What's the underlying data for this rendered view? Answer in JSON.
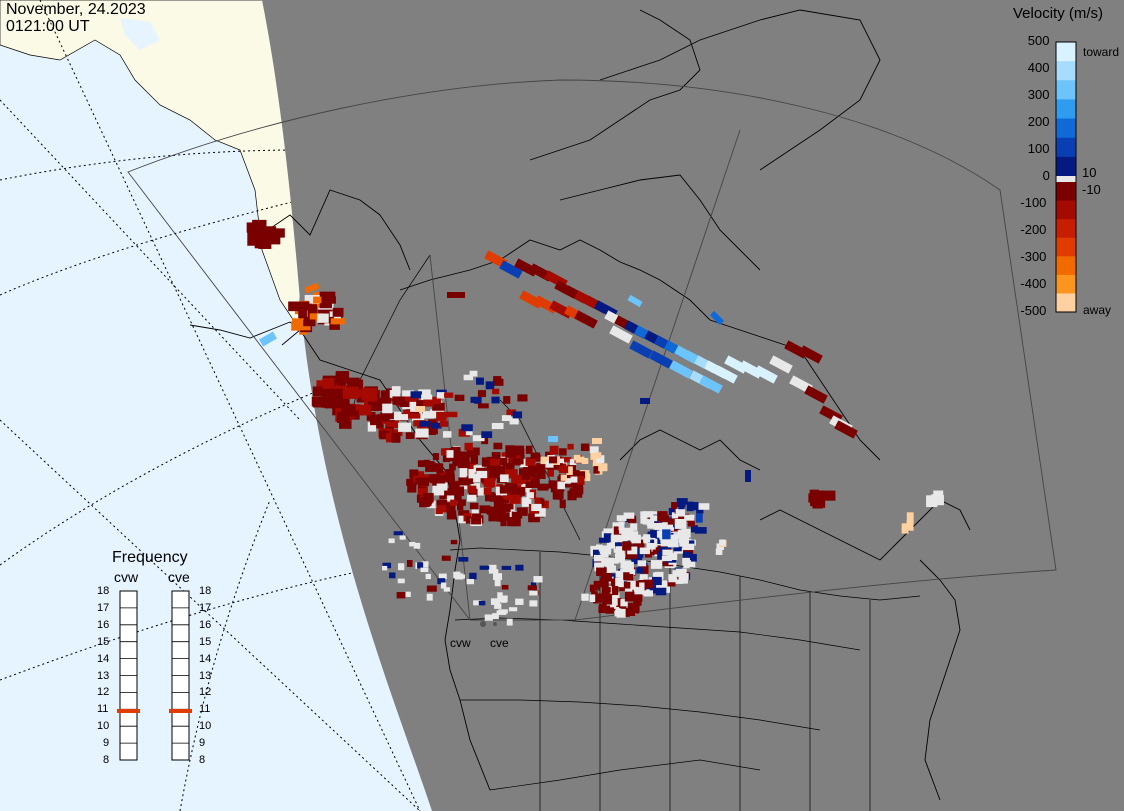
{
  "header": {
    "date": "November, 24.2023",
    "time": "0121:00 UT"
  },
  "velocity_legend": {
    "title": "Velocity (m/s)",
    "ticks": [
      "500",
      "400",
      "300",
      "200",
      "100",
      "10",
      "0",
      "-10",
      "-100",
      "-200",
      "-300",
      "-400",
      "-500"
    ],
    "toward_label": "toward",
    "away_label": "away",
    "colors": {
      "toward": [
        "#d8f2ff",
        "#a8dcfc",
        "#6cc4fa",
        "#2f9cf0",
        "#0f6ad8",
        "#0a3fb4",
        "#041a80"
      ],
      "ground": "#e8e8e8",
      "away": [
        "#7a0000",
        "#a40a00",
        "#c81e00",
        "#e03c00",
        "#f06a00",
        "#fb9520",
        "#ffd0a0"
      ]
    }
  },
  "frequency_panel": {
    "title": "Frequency",
    "radars": [
      {
        "name": "cvw",
        "frequency_mhz": 10.9
      },
      {
        "name": "cve",
        "frequency_mhz": 10.9
      }
    ],
    "scale": [
      "18",
      "17",
      "16",
      "15",
      "14",
      "13",
      "12",
      "11",
      "10",
      "9",
      "8"
    ],
    "marker_color": "#e03c00"
  },
  "map": {
    "ocean_color": "#e6f4ff",
    "land_color": "#fafae6",
    "night_color": "#808080",
    "radar_sites": [
      {
        "name": "cvw"
      },
      {
        "name": "cve"
      }
    ]
  }
}
